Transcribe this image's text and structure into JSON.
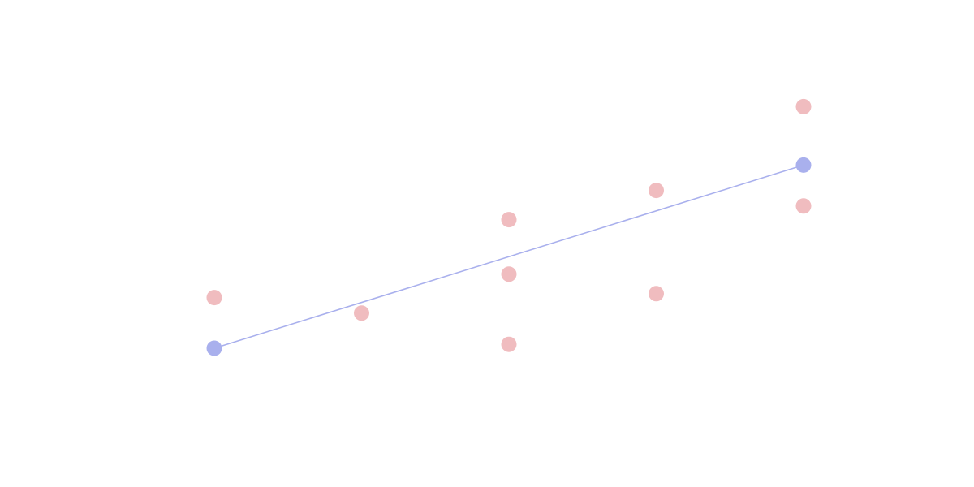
{
  "chart_data": {
    "type": "scatter",
    "title": "",
    "xlabel": "",
    "ylabel": "",
    "grid": false,
    "xlim": [
      0,
      4
    ],
    "ylim": [
      0,
      10
    ],
    "series": [
      {
        "color": "#f0bcbf",
        "points": [
          {
            "x": 0,
            "y": 4.3
          },
          {
            "x": 1,
            "y": 3.9
          },
          {
            "x": 2,
            "y": 6.3
          },
          {
            "x": 2,
            "y": 4.9
          },
          {
            "x": 2,
            "y": 3.1
          },
          {
            "x": 3,
            "y": 7.05
          },
          {
            "x": 3,
            "y": 4.4
          },
          {
            "x": 4,
            "y": 9.2
          },
          {
            "x": 4,
            "y": 6.65
          }
        ]
      },
      {
        "color": "#a9b0ed",
        "line": true,
        "points": [
          {
            "x": 0,
            "y": 3.0
          },
          {
            "x": 4,
            "y": 7.7
          }
        ]
      }
    ]
  }
}
